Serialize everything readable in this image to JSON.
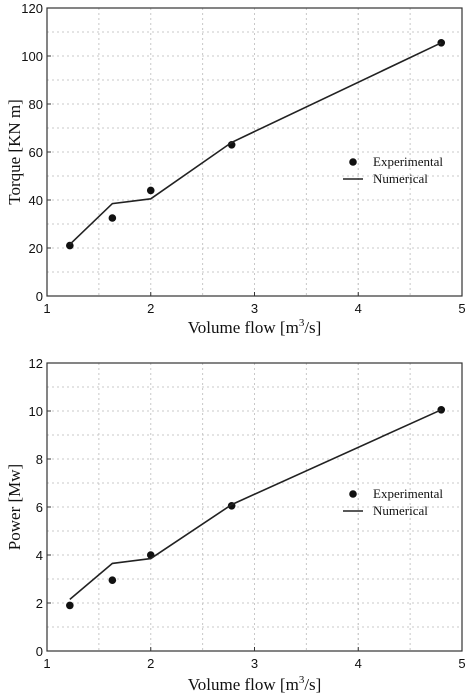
{
  "chart_data": [
    {
      "type": "scatter",
      "xlabel": {
        "prefix": "Volume flow [m",
        "sup": "3",
        "suffix": "/s]"
      },
      "ylabel": "Torque [KN m]",
      "xlim": [
        1,
        5
      ],
      "ylim": [
        0,
        120
      ],
      "xticks": [
        "1",
        "2",
        "3",
        "4",
        "5"
      ],
      "yticks": [
        "0",
        "20",
        "40",
        "60",
        "80",
        "100",
        "120"
      ],
      "xtick_values": [
        1,
        2,
        3,
        4,
        5
      ],
      "ytick_values": [
        0,
        20,
        40,
        60,
        80,
        100,
        120
      ],
      "grid": true,
      "legend_position": "right",
      "series": [
        {
          "name": "Experimental",
          "kind": "scatter",
          "x": [
            1.22,
            1.63,
            2.0,
            2.78,
            4.8
          ],
          "y": [
            21,
            32.5,
            44,
            63,
            105.5
          ]
        },
        {
          "name": "Numerical",
          "kind": "line",
          "x": [
            1.22,
            1.63,
            2.0,
            2.78,
            4.8
          ],
          "y": [
            21.5,
            38.5,
            40.5,
            64,
            105.5
          ]
        }
      ]
    },
    {
      "type": "scatter",
      "xlabel": {
        "prefix": "Volume flow [m",
        "sup": "3",
        "suffix": "/s]"
      },
      "ylabel": "Power [Mw]",
      "xlim": [
        1,
        5
      ],
      "ylim": [
        0,
        12
      ],
      "xticks": [
        "1",
        "2",
        "3",
        "4",
        "5"
      ],
      "yticks": [
        "0",
        "2",
        "4",
        "6",
        "8",
        "10",
        "12"
      ],
      "xtick_values": [
        1,
        2,
        3,
        4,
        5
      ],
      "ytick_values": [
        0,
        2,
        4,
        6,
        8,
        10,
        12
      ],
      "grid": true,
      "legend_position": "right",
      "series": [
        {
          "name": "Experimental",
          "kind": "scatter",
          "x": [
            1.22,
            1.63,
            2.0,
            2.78,
            4.8
          ],
          "y": [
            1.9,
            2.95,
            4.0,
            6.05,
            10.05
          ]
        },
        {
          "name": "Numerical",
          "kind": "line",
          "x": [
            1.22,
            1.63,
            2.0,
            2.78,
            4.8
          ],
          "y": [
            2.15,
            3.65,
            3.85,
            6.1,
            10.05
          ]
        }
      ]
    }
  ]
}
